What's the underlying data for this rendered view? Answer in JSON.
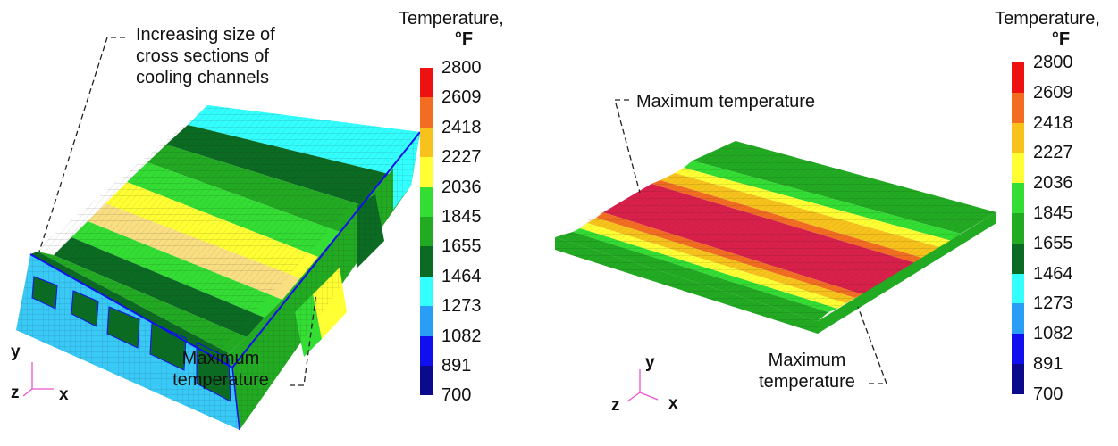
{
  "colors": {
    "palette": [
      "#ee1111",
      "#f26d22",
      "#f6c21b",
      "#ffff33",
      "#33dd33",
      "#22aa22",
      "#0b6b22",
      "#33ffff",
      "#2a9df4",
      "#1010ee",
      "#0a0a8a"
    ],
    "mesh_line": "#1a1a1a",
    "red_region": "#d8204a",
    "cyan_region": "#3fd0f4",
    "leader_line": "#222222",
    "axis_triad": "#ee55cc"
  },
  "left_panel": {
    "legend_title_line1": "Temperature,",
    "legend_title_line2": "°F",
    "callout_top": [
      "Increasing size of",
      "cross sections of",
      "cooling channels"
    ],
    "callout_bottom": [
      "Maximum",
      "temperature"
    ],
    "axis_labels": {
      "y": "y",
      "z": "z",
      "x": "x"
    }
  },
  "right_panel": {
    "legend_title_line1": "Temperature,",
    "legend_title_line2": "°F",
    "callout_top": "Maximum temperature",
    "callout_bottom": [
      "Maximum",
      "temperature"
    ],
    "axis_labels": {
      "y": "y",
      "z": "z",
      "x": "x"
    }
  },
  "legend_ticks": [
    "2800",
    "2609",
    "2418",
    "2227",
    "2036",
    "1845",
    "1655",
    "1464",
    "1273",
    "1082",
    "891",
    "700"
  ]
}
